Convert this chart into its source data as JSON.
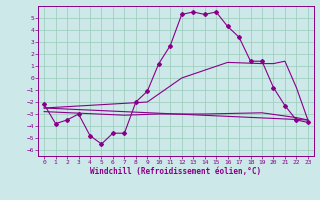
{
  "xlabel": "Windchill (Refroidissement éolien,°C)",
  "background_color": "#cce8e8",
  "grid_color": "#99ccbb",
  "line_color": "#880088",
  "xlim": [
    -0.5,
    23.5
  ],
  "ylim": [
    -6.5,
    6.0
  ],
  "yticks": [
    -6,
    -5,
    -4,
    -3,
    -2,
    -1,
    0,
    1,
    2,
    3,
    4,
    5
  ],
  "xticks": [
    0,
    1,
    2,
    3,
    4,
    5,
    6,
    7,
    8,
    9,
    10,
    11,
    12,
    13,
    14,
    15,
    16,
    17,
    18,
    19,
    20,
    21,
    22,
    23
  ],
  "line1_x": [
    0,
    1,
    2,
    3,
    4,
    5,
    6,
    7,
    8,
    9,
    10,
    11,
    12,
    13,
    14,
    15,
    16,
    17,
    18,
    19,
    20,
    21,
    22,
    23
  ],
  "line1_y": [
    -2.2,
    -3.8,
    -3.5,
    -3.0,
    -4.8,
    -5.5,
    -4.6,
    -4.6,
    -2.0,
    -1.1,
    1.2,
    2.7,
    5.3,
    5.5,
    5.3,
    5.5,
    4.3,
    3.4,
    1.4,
    1.4,
    -0.8,
    -2.3,
    -3.5,
    -3.7
  ],
  "line2_x": [
    0,
    23
  ],
  "line2_y": [
    -2.5,
    -3.5
  ],
  "line3_x": [
    0,
    7,
    10,
    14,
    19,
    22,
    23
  ],
  "line3_y": [
    -2.8,
    -3.1,
    -3.0,
    -3.0,
    -2.9,
    -3.3,
    -3.5
  ],
  "line4_x": [
    0,
    9,
    12,
    16,
    19,
    20,
    21,
    22,
    23
  ],
  "line4_y": [
    -2.5,
    -2.0,
    0.0,
    1.3,
    1.2,
    1.2,
    1.4,
    -0.8,
    -3.5
  ]
}
